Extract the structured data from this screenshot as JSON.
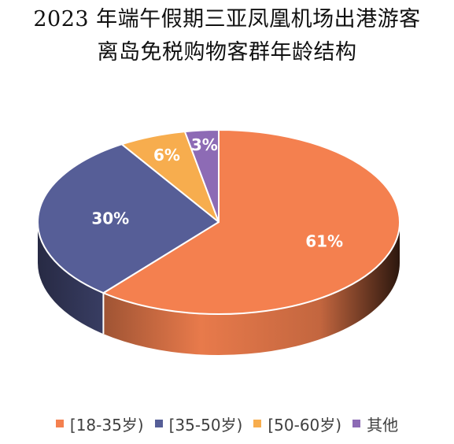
{
  "chart_data": {
    "type": "pie",
    "title": "2023 年端午假期三亚凤凰机场出港游客离岛免税购物客群年龄结构",
    "title_lines": [
      "2023 年端午假期三亚凤凰机场出港游客",
      "离岛免税购物客群年龄结构"
    ],
    "style": "3d",
    "legend_position": "bottom",
    "slices": [
      {
        "label": "[18-35岁)",
        "value": 61,
        "display": "61%",
        "color": "#F4804F"
      },
      {
        "label": "[35-50岁)",
        "value": 30,
        "display": "30%",
        "color": "#565E97"
      },
      {
        "label": "[50-60岁)",
        "value": 6,
        "display": "6%",
        "color": "#F7AD4E"
      },
      {
        "label": "其他",
        "value": 3,
        "display": "3%",
        "color": "#8D6BB5"
      }
    ]
  }
}
